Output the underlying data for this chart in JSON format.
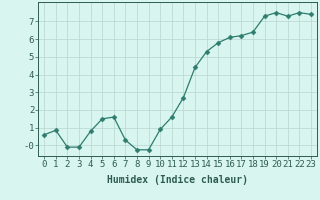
{
  "x": [
    0,
    1,
    2,
    3,
    4,
    5,
    6,
    7,
    8,
    9,
    10,
    11,
    12,
    13,
    14,
    15,
    16,
    17,
    18,
    19,
    20,
    21,
    22,
    23
  ],
  "y": [
    0.6,
    0.85,
    -0.1,
    -0.1,
    0.8,
    1.5,
    1.6,
    0.3,
    -0.25,
    -0.25,
    0.9,
    1.6,
    2.7,
    4.4,
    5.3,
    5.8,
    6.1,
    6.2,
    6.4,
    7.3,
    7.5,
    7.3,
    7.5,
    7.4
  ],
  "line_color": "#2e7d6e",
  "marker": "D",
  "marker_size": 2.5,
  "bg_color": "#d8f5f0",
  "grid_color": "#b8d4d0",
  "xlabel": "Humidex (Indice chaleur)",
  "ylabel": "",
  "xlim": [
    -0.5,
    23.5
  ],
  "ylim": [
    -0.6,
    8.1
  ],
  "ytick_vals": [
    0,
    1,
    2,
    3,
    4,
    5,
    6,
    7
  ],
  "ytick_labels": [
    "-0",
    "1",
    "2",
    "3",
    "4",
    "5",
    "6",
    "7"
  ],
  "xtick_labels": [
    "0",
    "1",
    "2",
    "3",
    "4",
    "5",
    "6",
    "7",
    "8",
    "9",
    "10",
    "11",
    "12",
    "13",
    "14",
    "15",
    "16",
    "17",
    "18",
    "19",
    "20",
    "21",
    "22",
    "23"
  ],
  "xlabel_fontsize": 7,
  "tick_fontsize": 6.5,
  "axis_color": "#2e5c50",
  "spine_color": "#2e5c50",
  "linewidth": 0.9
}
